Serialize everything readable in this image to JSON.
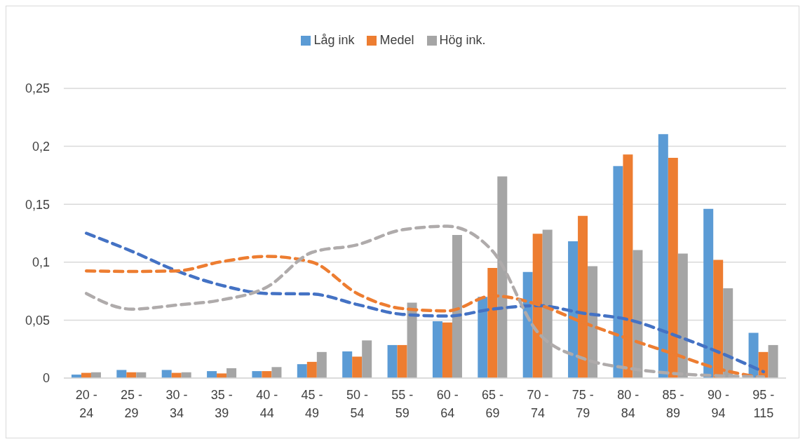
{
  "chart_data": {
    "type": "bar",
    "categories": [
      "20 - 24",
      "25 - 29",
      "30 - 34",
      "35 - 39",
      "40 - 44",
      "45 - 49",
      "50 - 54",
      "55 - 59",
      "60 - 64",
      "65 - 69",
      "70 - 74",
      "75 - 79",
      "80 - 84",
      "85 - 89",
      "90 - 94",
      "95 - 115"
    ],
    "series": [
      {
        "name": "Låg ink",
        "color": "#5b9bd5",
        "values": [
          0.003,
          0.007,
          0.007,
          0.006,
          0.006,
          0.012,
          0.023,
          0.0285,
          0.049,
          0.07,
          0.0915,
          0.118,
          0.183,
          0.2105,
          0.146,
          0.039
        ]
      },
      {
        "name": "Medel",
        "color": "#ed7d31",
        "values": [
          0.0045,
          0.005,
          0.0045,
          0.004,
          0.006,
          0.014,
          0.0185,
          0.0285,
          0.048,
          0.095,
          0.1245,
          0.14,
          0.193,
          0.19,
          0.102,
          0.0225
        ]
      },
      {
        "name": "Hög ink.",
        "color": "#a5a5a5",
        "values": [
          0.005,
          0.005,
          0.005,
          0.0085,
          0.0095,
          0.0225,
          0.0325,
          0.065,
          0.1235,
          0.174,
          0.128,
          0.0965,
          0.1105,
          0.1075,
          0.0775,
          0.0285
        ]
      },
      {
        "type": "line",
        "color": "#4472c4",
        "line_style": "dashed",
        "values": [
          0.125,
          0.1095,
          0.0925,
          0.08,
          0.073,
          0.0725,
          0.0635,
          0.055,
          0.0535,
          0.0595,
          0.0625,
          0.056,
          0.0505,
          0.0375,
          0.0225,
          0.0055
        ]
      },
      {
        "type": "line",
        "color": "#ed7d31",
        "line_style": "dashed",
        "values": [
          0.0925,
          0.092,
          0.0925,
          0.1005,
          0.105,
          0.1,
          0.073,
          0.06,
          0.058,
          0.071,
          0.0635,
          0.048,
          0.034,
          0.021,
          0.008,
          0
        ]
      },
      {
        "type": "line",
        "color": "#afabab",
        "line_style": "dashed",
        "values": [
          0.073,
          0.0595,
          0.063,
          0.0675,
          0.0785,
          0.1085,
          0.115,
          0.128,
          0.131,
          0.1095,
          0.0395,
          0.017,
          0.0085,
          0.004,
          0.002,
          0.001
        ]
      }
    ],
    "ylim": [
      0,
      0.25
    ],
    "yticks": [
      0,
      {
        "value": 0.05,
        "label": "0,05"
      },
      {
        "value": 0.1,
        "label": "0,1"
      },
      {
        "value": 0.15,
        "label": "0,15"
      },
      {
        "value": 0.2,
        "label": "0,2"
      },
      {
        "value": 0.25,
        "label": "0,25"
      }
    ],
    "grid": "y",
    "legend": "top",
    "marker": "none"
  }
}
